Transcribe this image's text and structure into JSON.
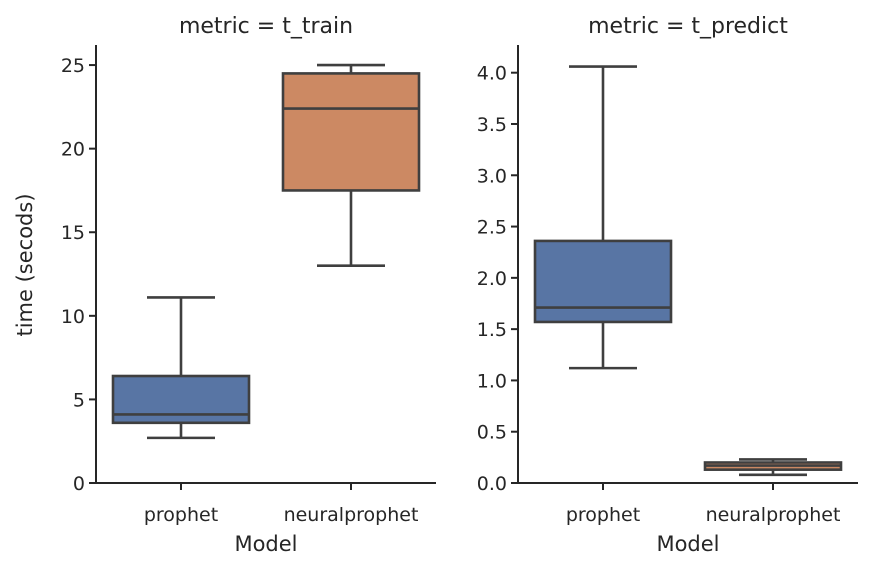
{
  "chart_data": [
    {
      "type": "box",
      "title": "metric = t_train",
      "xlabel": "Model",
      "ylabel": "time (secods)",
      "categories": [
        "prophet",
        "neuralprophet"
      ],
      "ylim": [
        0,
        26.2
      ],
      "yticks": [
        0,
        5,
        10,
        15,
        20,
        25
      ],
      "ytick_labels": [
        "0",
        "5",
        "10",
        "15",
        "20",
        "25"
      ],
      "boxes": [
        {
          "category": "prophet",
          "whisker_low": 2.7,
          "q1": 3.6,
          "median": 4.1,
          "q3": 6.4,
          "whisker_high": 11.1,
          "color": "#5875a4"
        },
        {
          "category": "neuralprophet",
          "whisker_low": 13.0,
          "q1": 17.5,
          "median": 22.4,
          "q3": 24.5,
          "whisker_high": 25.0,
          "color": "#cc8963"
        }
      ]
    },
    {
      "type": "box",
      "title": "metric = t_predict",
      "xlabel": "Model",
      "ylabel": "",
      "categories": [
        "prophet",
        "neuralprophet"
      ],
      "ylim": [
        0,
        4.27
      ],
      "yticks": [
        0,
        0.5,
        1,
        1.5,
        2,
        2.5,
        3,
        3.5,
        4
      ],
      "ytick_labels": [
        "0.0",
        "0.5",
        "1.0",
        "1.5",
        "2.0",
        "2.5",
        "3.0",
        "3.5",
        "4.0"
      ],
      "boxes": [
        {
          "category": "prophet",
          "whisker_low": 1.12,
          "q1": 1.57,
          "median": 1.71,
          "q3": 2.36,
          "whisker_high": 4.06,
          "color": "#5875a4"
        },
        {
          "category": "neuralprophet",
          "whisker_low": 0.08,
          "q1": 0.13,
          "median": 0.17,
          "q3": 0.2,
          "whisker_high": 0.23,
          "color": "#cc8963"
        }
      ]
    }
  ]
}
